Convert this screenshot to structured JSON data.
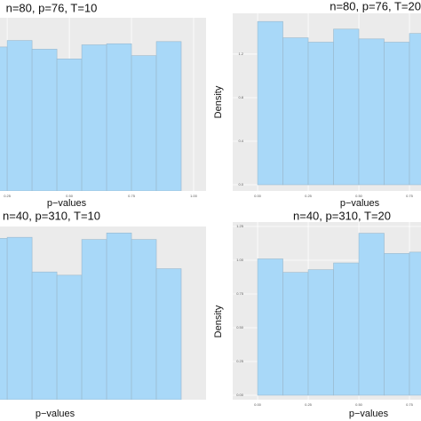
{
  "chart_data": [
    {
      "type": "histogram",
      "title": "n=80, p=76, T=10",
      "x_label": "p−values",
      "color": "#a8d8f8",
      "bins": [
        0.15,
        0.25,
        0.35,
        0.45,
        0.55,
        0.65,
        0.75,
        0.85,
        0.95
      ],
      "values": [
        1.33,
        1.39,
        1.31,
        1.22,
        1.35,
        1.36,
        1.25,
        1.38
      ],
      "xlim": [
        0.221,
        1.05
      ],
      "ylim": [
        0,
        1.6
      ],
      "xticks": [
        0.25,
        {
          "value": 0.5,
          "label": "0.50"
        },
        0.75,
        {
          "value": 1,
          "label": "1.00"
        }
      ],
      "grid": true
    },
    {
      "type": "histogram",
      "title": "n=80, p=76, T=20",
      "x_label": "p−values",
      "y_label": "Density",
      "color": "#a8d8f8",
      "bins": [
        0,
        0.125,
        0.25,
        0.375,
        0.5,
        0.625,
        0.75,
        0.875
      ],
      "values": [
        1.5,
        1.35,
        1.31,
        1.43,
        1.34,
        1.31,
        1.39
      ],
      "xlim": [
        -0.123,
        0.807
      ],
      "ylim": [
        -0.057,
        1.575
      ],
      "xticks": [
        {
          "value": 0,
          "label": "0.00"
        },
        0.25,
        {
          "value": 0.5,
          "label": "0.50"
        },
        0.75
      ],
      "yticks": [
        {
          "value": 0,
          "label": "0.0"
        },
        0.4,
        0.8,
        1.2
      ],
      "grid": true
    },
    {
      "type": "histogram",
      "title": "n=40, p=310, T=10",
      "x_label": "p−values",
      "color": "#a8d8f8",
      "bins": [
        0.15,
        0.25,
        0.35,
        0.45,
        0.55,
        0.65,
        0.75,
        0.85,
        0.95
      ],
      "values": [
        1.49,
        1.5,
        1.18,
        1.15,
        1.48,
        1.54,
        1.48,
        1.21
      ],
      "xlim": [
        0.221,
        1.05
      ],
      "ylim": [
        0,
        1.6
      ],
      "grid": true
    },
    {
      "type": "histogram",
      "title": "n=40, p=310, T=20",
      "x_label": "p−values",
      "y_label": "Density",
      "color": "#a8d8f8",
      "bins": [
        0,
        0.125,
        0.25,
        0.375,
        0.5,
        0.625,
        0.75,
        0.875
      ],
      "values": [
        1.01,
        0.91,
        0.93,
        0.98,
        1.2,
        1.05,
        1.06
      ],
      "xlim": [
        -0.123,
        0.807
      ],
      "ylim": [
        -0.033,
        1.283
      ],
      "xticks": [
        {
          "value": 0,
          "label": "0.00"
        },
        0.25,
        {
          "value": 0.5,
          "label": "0.50"
        },
        0.75
      ],
      "yticks": [
        {
          "value": 0,
          "label": "0.00"
        },
        0.25,
        {
          "value": 0.5,
          "label": "0.50"
        },
        0.75,
        {
          "value": 1,
          "label": "1.00"
        },
        1.25
      ],
      "grid": true
    }
  ]
}
